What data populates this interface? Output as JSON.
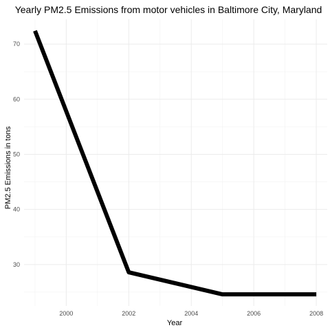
{
  "chart_data": {
    "type": "line",
    "title": "Yearly PM2.5 Emissions from motor vehicles in Baltimore City, Maryland",
    "xlabel": "Year",
    "ylabel": "PM2.5 Emissions in tons",
    "x": [
      1999,
      2002,
      2005,
      2008
    ],
    "series": [
      {
        "values": [
          72.4,
          28.6,
          24.6,
          24.6
        ]
      }
    ],
    "x_ticks": [
      2000,
      2002,
      2004,
      2006,
      2008
    ],
    "y_ticks": [
      30,
      40,
      50,
      60,
      70
    ],
    "xlim": [
      1998.65,
      2008.35
    ],
    "ylim": [
      22.5,
      74.5
    ],
    "grid": true,
    "line_color": "#000000"
  }
}
